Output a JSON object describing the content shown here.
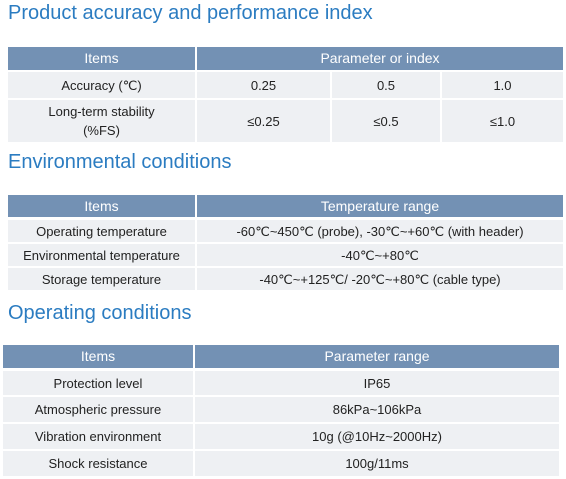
{
  "sections": [
    {
      "title": "Product accuracy and performance index",
      "table": {
        "header": [
          "Items",
          "Parameter or index"
        ],
        "rows": [
          [
            "Accuracy (℃)",
            "0.25",
            "0.5",
            "1.0"
          ],
          [
            "Long-term  stability\n(%FS)",
            "≤0.25",
            "≤0.5",
            "≤1.0"
          ]
        ]
      }
    },
    {
      "title": "Environmental conditions",
      "table": {
        "header": [
          "Items",
          "Temperature range"
        ],
        "rows": [
          [
            "Operating temperature",
            "-60℃~450℃ (probe), -30℃~+60℃ (with header)"
          ],
          [
            "Environmental temperature",
            "-40℃~+80℃"
          ],
          [
            "Storage temperature",
            "-40℃~+125℃/ -20℃~+80℃ (cable type)"
          ]
        ]
      }
    },
    {
      "title": "Operating conditions",
      "table": {
        "header": [
          "Items",
          "Parameter range"
        ],
        "rows": [
          [
            "Protection level",
            "IP65"
          ],
          [
            "Atmospheric pressure",
            "86kPa~106kPa"
          ],
          [
            "Vibration environment",
            "10g (@10Hz~2000Hz)"
          ],
          [
            "Shock resistance",
            "100g/11ms"
          ]
        ]
      }
    }
  ]
}
